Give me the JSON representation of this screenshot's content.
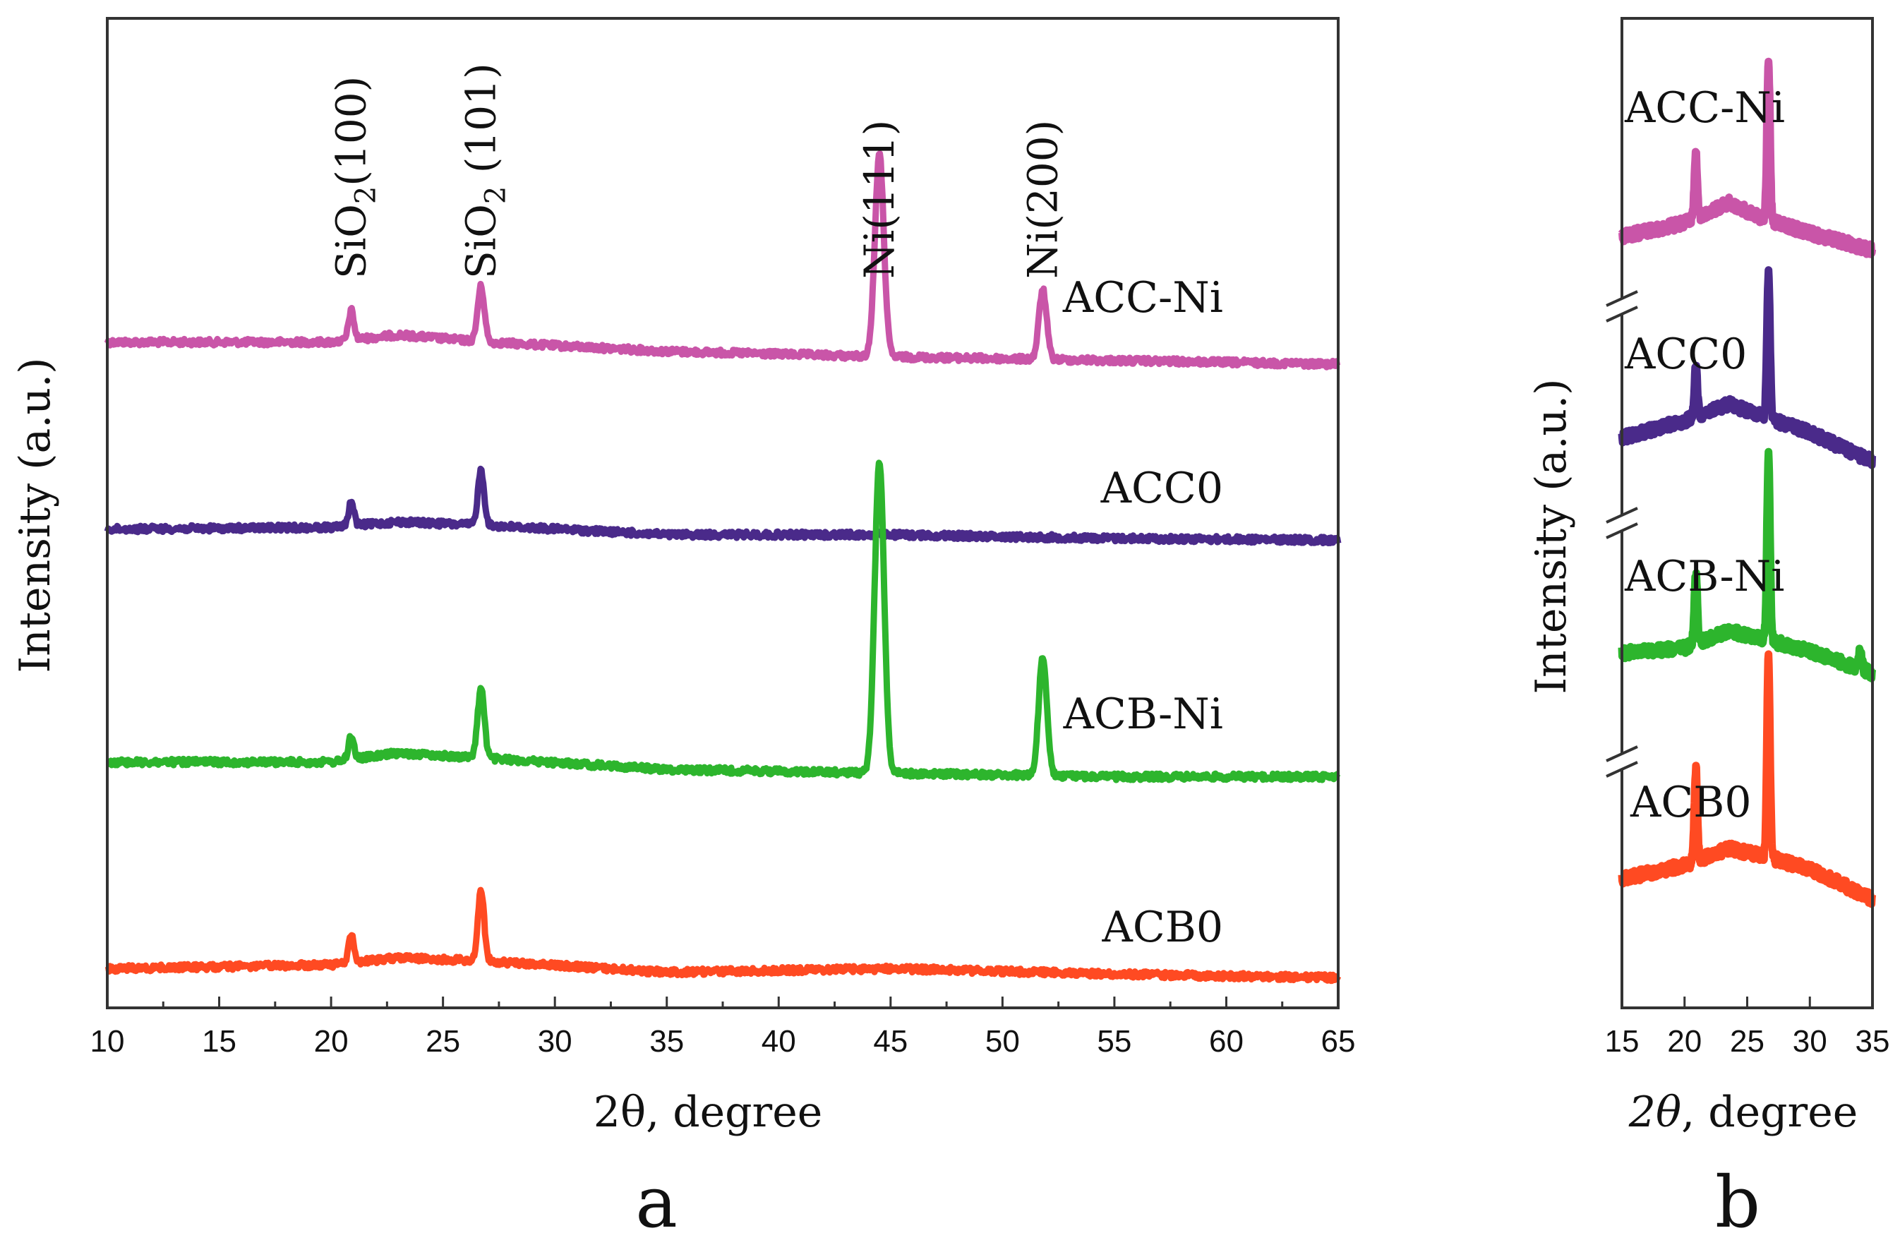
{
  "chart_data": [
    {
      "type": "line",
      "panel": "a",
      "xlabel": "2θ, degree",
      "ylabel": "Intensity (a.u.)",
      "xlim": [
        10,
        65
      ],
      "xticks": [
        "10",
        "15",
        "20",
        "25",
        "30",
        "35",
        "40",
        "45",
        "50",
        "55",
        "60",
        "65"
      ],
      "yticks": false,
      "peak_annotations": [
        {
          "base": "SiO",
          "sub": "2",
          "suffix": "(100)",
          "x": 20.9
        },
        {
          "base": "SiO",
          "sub": "2",
          "suffix": " (101)",
          "x": 26.7
        },
        {
          "base": "Ni(111)",
          "sub": "",
          "suffix": "",
          "x": 44.5
        },
        {
          "base": "Ni(200)",
          "sub": "",
          "suffix": "",
          "x": 51.8
        }
      ],
      "series": [
        {
          "name": "ACC-Ni",
          "color": "#c955a8",
          "baseline": [
            [
              10,
              0.02
            ],
            [
              20,
              0.02
            ],
            [
              23,
              0.06
            ],
            [
              27,
              0.02
            ],
            [
              35,
              -0.03
            ],
            [
              45,
              -0.06
            ],
            [
              55,
              -0.08
            ],
            [
              65,
              -0.1
            ]
          ],
          "peaks": [
            [
              20.9,
              0.16,
              0.12
            ],
            [
              26.7,
              0.3,
              0.15
            ],
            [
              44.5,
              1.1,
              0.2
            ],
            [
              51.8,
              0.38,
              0.17
            ]
          ]
        },
        {
          "name": "ACC0",
          "color": "#4a2a8a",
          "baseline": [
            [
              10,
              0.02
            ],
            [
              20,
              0.03
            ],
            [
              23,
              0.06
            ],
            [
              27,
              0.04
            ],
            [
              35,
              -0.01
            ],
            [
              45,
              -0.01
            ],
            [
              55,
              -0.03
            ],
            [
              65,
              -0.04
            ]
          ],
          "peaks": [
            [
              20.9,
              0.13,
              0.12
            ],
            [
              26.7,
              0.3,
              0.14
            ]
          ]
        },
        {
          "name": "ACB-Ni",
          "color": "#2db52d",
          "baseline": [
            [
              10,
              0.02
            ],
            [
              20,
              0.02
            ],
            [
              23,
              0.07
            ],
            [
              27,
              0.04
            ],
            [
              35,
              -0.02
            ],
            [
              45,
              -0.04
            ],
            [
              55,
              -0.06
            ],
            [
              65,
              -0.06
            ]
          ],
          "peaks": [
            [
              20.9,
              0.13,
              0.12
            ],
            [
              26.7,
              0.38,
              0.15
            ],
            [
              44.5,
              1.7,
              0.21
            ],
            [
              51.8,
              0.65,
              0.18
            ]
          ]
        },
        {
          "name": "ACB0",
          "color": "#ff4a22",
          "baseline": [
            [
              10,
              0.01
            ],
            [
              20,
              0.03
            ],
            [
              23,
              0.07
            ],
            [
              27,
              0.05
            ],
            [
              35,
              -0.01
            ],
            [
              45,
              0.01
            ],
            [
              55,
              -0.02
            ],
            [
              65,
              -0.04
            ]
          ],
          "peaks": [
            [
              20.9,
              0.15,
              0.12
            ],
            [
              26.7,
              0.38,
              0.14
            ]
          ]
        }
      ]
    },
    {
      "type": "line",
      "panel": "b",
      "xlabel_symbol": "2θ",
      "xlabel_rest": ", degree",
      "ylabel": "Intensity (a.u.)",
      "xlim": [
        15,
        35
      ],
      "xticks": [
        "15",
        "20",
        "25",
        "30",
        "35"
      ],
      "axis_breaks": true,
      "series": [
        {
          "name": "ACC-Ni",
          "color": "#c955a8",
          "baseline": [
            [
              15,
              0.02
            ],
            [
              20,
              0.1
            ],
            [
              23.5,
              0.22
            ],
            [
              26.5,
              0.12
            ],
            [
              30,
              0.04
            ],
            [
              35,
              -0.06
            ]
          ],
          "peaks": [
            [
              20.9,
              0.38,
              0.12
            ],
            [
              26.7,
              0.95,
              0.12
            ]
          ]
        },
        {
          "name": "ACC0",
          "color": "#4a2a8a",
          "baseline": [
            [
              15,
              0.02
            ],
            [
              20,
              0.12
            ],
            [
              23.5,
              0.22
            ],
            [
              26.5,
              0.14
            ],
            [
              30,
              0.05
            ],
            [
              35,
              -0.12
            ]
          ],
          "peaks": [
            [
              20.9,
              0.3,
              0.12
            ],
            [
              26.7,
              0.85,
              0.12
            ]
          ]
        },
        {
          "name": "ACB-Ni",
          "color": "#2db52d",
          "baseline": [
            [
              15,
              0.02
            ],
            [
              20,
              0.05
            ],
            [
              23.5,
              0.15
            ],
            [
              26.5,
              0.1
            ],
            [
              30,
              0.03
            ],
            [
              35,
              -0.1
            ]
          ],
          "peaks": [
            [
              20.9,
              0.42,
              0.12
            ],
            [
              26.7,
              1.1,
              0.12
            ],
            [
              34.0,
              0.1,
              0.15
            ]
          ]
        },
        {
          "name": "ACB0",
          "color": "#ff4a22",
          "baseline": [
            [
              15,
              0.02
            ],
            [
              20,
              0.1
            ],
            [
              23.5,
              0.2
            ],
            [
              26.5,
              0.15
            ],
            [
              30,
              0.08
            ],
            [
              35,
              -0.1
            ]
          ],
          "peaks": [
            [
              20.9,
              0.55,
              0.12
            ],
            [
              26.7,
              1.2,
              0.12
            ]
          ]
        }
      ]
    }
  ]
}
